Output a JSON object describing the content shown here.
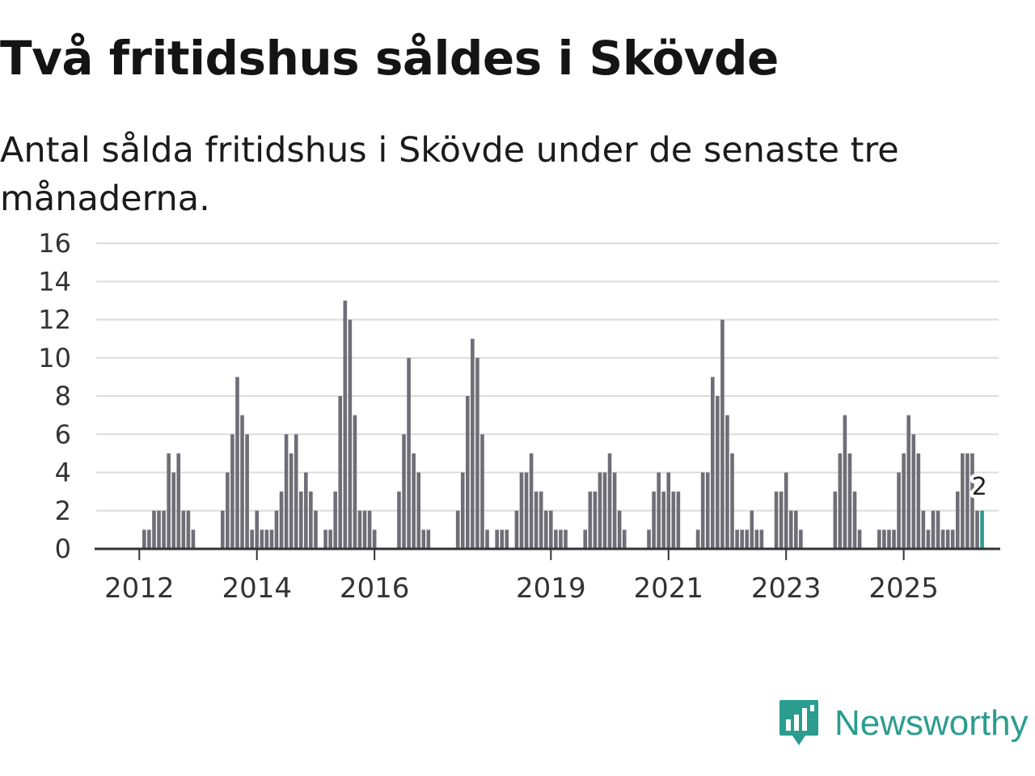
{
  "title": "Två fritidshus såldes i Skövde",
  "subtitle": "Antal sålda fritidshus i Skövde under de senaste tre månaderna.",
  "brand": {
    "name": "Newsworthy"
  },
  "colors": {
    "bar": "#6f6e76",
    "highlight": "#2a9d8f",
    "grid": "#dcdcdc",
    "axis": "#333333"
  },
  "chart_data": {
    "type": "bar",
    "title": "Två fritidshus såldes i Skövde",
    "ylabel": "",
    "xlabel": "",
    "ylim": [
      0,
      16
    ],
    "yticks": [
      0,
      2,
      4,
      6,
      8,
      10,
      12,
      14,
      16
    ],
    "x_start": "2011-05",
    "xtick_labels": [
      {
        "label": "2012",
        "year": 2012
      },
      {
        "label": "2014",
        "year": 2014
      },
      {
        "label": "2016",
        "year": 2016
      },
      {
        "label": "2019",
        "year": 2019
      },
      {
        "label": "2021",
        "year": 2021
      },
      {
        "label": "2023",
        "year": 2023
      },
      {
        "label": "2025",
        "year": 2025
      }
    ],
    "values": [
      0,
      0,
      0,
      0,
      0,
      0,
      0,
      0,
      0,
      1,
      1,
      2,
      2,
      2,
      5,
      4,
      5,
      2,
      2,
      1,
      0,
      0,
      0,
      0,
      0,
      2,
      4,
      6,
      9,
      7,
      6,
      1,
      2,
      1,
      1,
      1,
      2,
      3,
      6,
      5,
      6,
      3,
      4,
      3,
      2,
      0,
      1,
      1,
      3,
      8,
      13,
      12,
      7,
      2,
      2,
      2,
      1,
      0,
      0,
      0,
      0,
      3,
      6,
      10,
      5,
      4,
      1,
      1,
      0,
      0,
      0,
      0,
      0,
      2,
      4,
      8,
      11,
      10,
      6,
      1,
      0,
      1,
      1,
      1,
      0,
      2,
      4,
      4,
      5,
      3,
      3,
      2,
      2,
      1,
      1,
      1,
      0,
      0,
      0,
      1,
      3,
      3,
      4,
      4,
      5,
      4,
      2,
      1,
      0,
      0,
      0,
      0,
      1,
      3,
      4,
      3,
      4,
      3,
      3,
      0,
      0,
      0,
      1,
      4,
      4,
      9,
      8,
      12,
      7,
      5,
      1,
      1,
      1,
      2,
      1,
      1,
      0,
      0,
      3,
      3,
      4,
      2,
      2,
      1,
      0,
      0,
      0,
      0,
      0,
      0,
      3,
      5,
      7,
      5,
      3,
      1,
      0,
      0,
      0,
      1,
      1,
      1,
      1,
      4,
      5,
      7,
      6,
      5,
      2,
      1,
      2,
      2,
      1,
      1,
      1,
      3,
      5,
      5,
      5,
      2,
      2
    ],
    "last_value_label": "2"
  }
}
